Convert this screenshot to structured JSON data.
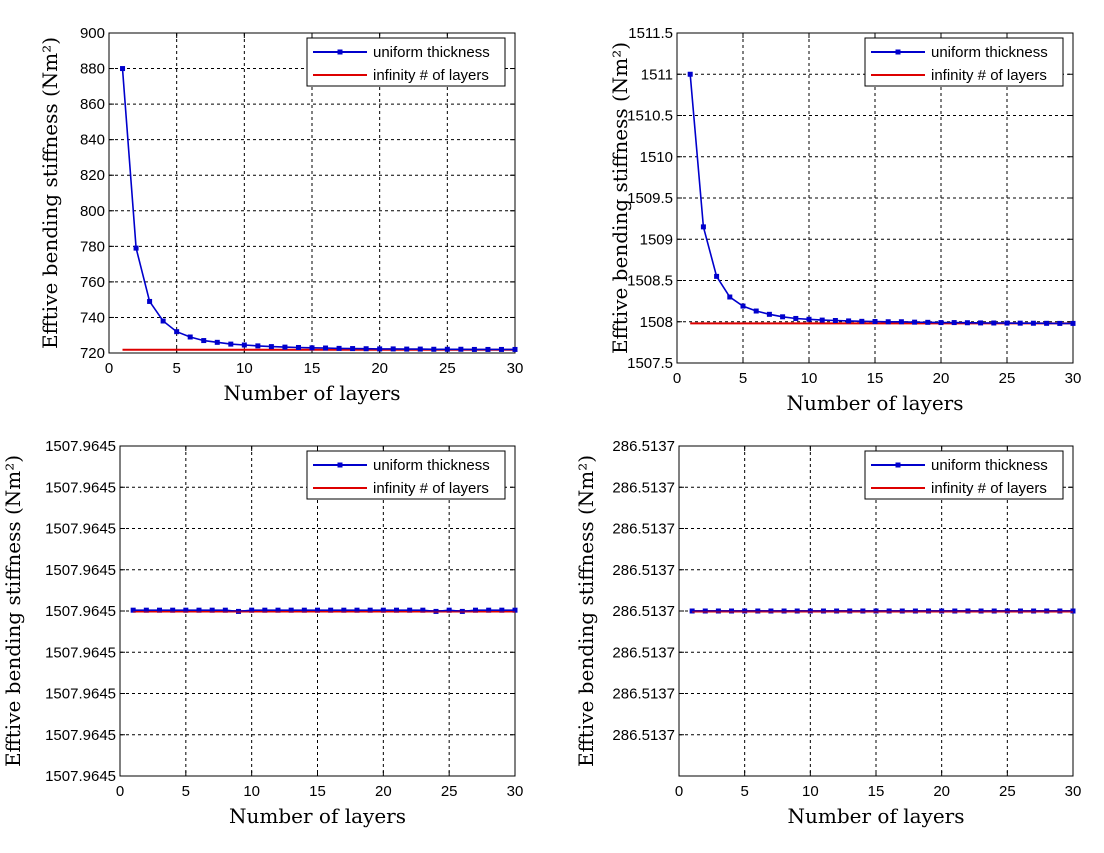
{
  "colors": {
    "series_uniform": "#0000cc",
    "series_infinity": "#dd0000",
    "grid": "#000000",
    "axes": "#000000"
  },
  "chart_data": [
    {
      "type": "line",
      "xlabel": "Number of layers",
      "ylabel": "Efftive bending stiffness (Nm²)",
      "xlim": [
        0,
        30
      ],
      "ylim": [
        720,
        900
      ],
      "x_ticks": [
        "0",
        "5",
        "10",
        "15",
        "20",
        "25",
        "30"
      ],
      "y_ticks": [
        "720",
        "740",
        "760",
        "780",
        "800",
        "820",
        "840",
        "860",
        "880",
        "900"
      ],
      "grid": true,
      "legend": {
        "placement": "top-right",
        "entries": [
          "uniform thickness",
          "infinity # of layers"
        ]
      },
      "series": [
        {
          "name": "uniform thickness",
          "x": [
            1,
            2,
            3,
            4,
            5,
            6,
            7,
            8,
            9,
            10,
            11,
            12,
            13,
            14,
            15,
            16,
            17,
            18,
            19,
            20,
            21,
            22,
            23,
            24,
            25,
            26,
            27,
            28,
            29,
            30
          ],
          "values": [
            880,
            779,
            749,
            738,
            732,
            729,
            727,
            726,
            725,
            724.5,
            724,
            723.6,
            723.3,
            723.1,
            722.9,
            722.8,
            722.6,
            722.5,
            722.4,
            722.3,
            722.3,
            722.2,
            722.2,
            722.1,
            722.1,
            722.1,
            722,
            722,
            722,
            722
          ]
        },
        {
          "name": "infinity # of layers",
          "x": [
            1,
            30
          ],
          "values": [
            721.8,
            721.8
          ]
        }
      ]
    },
    {
      "type": "line",
      "xlabel": "Number of layers",
      "ylabel": "Efftive bending stiffness (Nm²)",
      "xlim": [
        0,
        30
      ],
      "ylim": [
        1507.5,
        1511.5
      ],
      "x_ticks": [
        "0",
        "5",
        "10",
        "15",
        "20",
        "25",
        "30"
      ],
      "y_ticks": [
        "1507.5",
        "1508",
        "1508.5",
        "1509",
        "1509.5",
        "1510",
        "1510.5",
        "1511",
        "1511.5"
      ],
      "grid": true,
      "legend": {
        "placement": "top-right",
        "entries": [
          "uniform thickness",
          "infinity # of layers"
        ]
      },
      "series": [
        {
          "name": "uniform thickness",
          "x": [
            1,
            2,
            3,
            4,
            5,
            6,
            7,
            8,
            9,
            10,
            11,
            12,
            13,
            14,
            15,
            16,
            17,
            18,
            19,
            20,
            21,
            22,
            23,
            24,
            25,
            26,
            27,
            28,
            29,
            30
          ],
          "values": [
            1511,
            1509.15,
            1508.55,
            1508.3,
            1508.19,
            1508.13,
            1508.09,
            1508.06,
            1508.04,
            1508.03,
            1508.02,
            1508.015,
            1508.01,
            1508.005,
            1508.003,
            1508.0,
            1508.0,
            1507.995,
            1507.993,
            1507.99,
            1507.99,
            1507.988,
            1507.986,
            1507.985,
            1507.984,
            1507.983,
            1507.982,
            1507.981,
            1507.98,
            1507.98
          ]
        },
        {
          "name": "infinity # of layers",
          "x": [
            1,
            30
          ],
          "values": [
            1507.98,
            1507.98
          ]
        }
      ]
    },
    {
      "type": "line",
      "xlabel": "Number of layers",
      "ylabel": "Efftive bending stiffness (Nm²)",
      "xlim": [
        0,
        30
      ],
      "ylim": [
        0,
        8
      ],
      "x_ticks": [
        "0",
        "5",
        "10",
        "15",
        "20",
        "25",
        "30"
      ],
      "y_ticks": [
        "1507.9645",
        "1507.9645",
        "1507.9645",
        "1507.9645",
        "1507.9645",
        "1507.9645",
        "1507.9645",
        "1507.9645",
        "1507.9645"
      ],
      "grid": true,
      "legend": {
        "placement": "top-right",
        "entries": [
          "uniform thickness",
          "infinity # of layers"
        ]
      },
      "series": [
        {
          "name": "uniform thickness",
          "x": [
            1,
            2,
            3,
            4,
            5,
            6,
            7,
            8,
            9,
            10,
            11,
            12,
            13,
            14,
            15,
            16,
            17,
            18,
            19,
            20,
            21,
            22,
            23,
            24,
            25,
            26,
            27,
            28,
            29,
            30
          ],
          "values": [
            4.02,
            4.02,
            4.02,
            4.02,
            4.02,
            4.02,
            4.02,
            4.02,
            3.99,
            4.02,
            4.02,
            4.02,
            4.02,
            4.02,
            4.02,
            4.02,
            4.02,
            4.02,
            4.02,
            4.02,
            4.02,
            4.02,
            4.02,
            3.99,
            4.02,
            3.99,
            4.02,
            4.02,
            4.02,
            4.02
          ]
        },
        {
          "name": "infinity # of layers",
          "x": [
            1,
            30
          ],
          "values": [
            4.0,
            4.0
          ]
        }
      ]
    },
    {
      "type": "line",
      "xlabel": "Number of layers",
      "ylabel": "Efftive bending stiffness (Nm²)",
      "xlim": [
        0,
        30
      ],
      "ylim": [
        0,
        8
      ],
      "x_ticks": [
        "0",
        "5",
        "10",
        "15",
        "20",
        "25",
        "30"
      ],
      "y_ticks": [
        "",
        "286.5137",
        "286.5137",
        "286.5137",
        "286.5137",
        "286.5137",
        "286.5137",
        "286.5137",
        "286.5137"
      ],
      "grid": true,
      "legend": {
        "placement": "top-right",
        "entries": [
          "uniform thickness",
          "infinity # of layers"
        ]
      },
      "series": [
        {
          "name": "uniform thickness",
          "x": [
            1,
            2,
            3,
            4,
            5,
            6,
            7,
            8,
            9,
            10,
            11,
            12,
            13,
            14,
            15,
            16,
            17,
            18,
            19,
            20,
            21,
            22,
            23,
            24,
            25,
            26,
            27,
            28,
            29,
            30
          ],
          "values": [
            4.0,
            4.0,
            4.0,
            4.0,
            4.0,
            4.0,
            4.0,
            4.0,
            4.0,
            4.0,
            4.0,
            4.0,
            4.0,
            4.0,
            4.0,
            4.0,
            4.0,
            4.0,
            4.0,
            4.0,
            4.0,
            4.0,
            4.0,
            4.0,
            4.0,
            4.0,
            4.0,
            4.0,
            4.0,
            4.0
          ]
        },
        {
          "name": "infinity # of layers",
          "x": [
            1,
            30
          ],
          "values": [
            4.0,
            4.0
          ]
        }
      ]
    }
  ]
}
